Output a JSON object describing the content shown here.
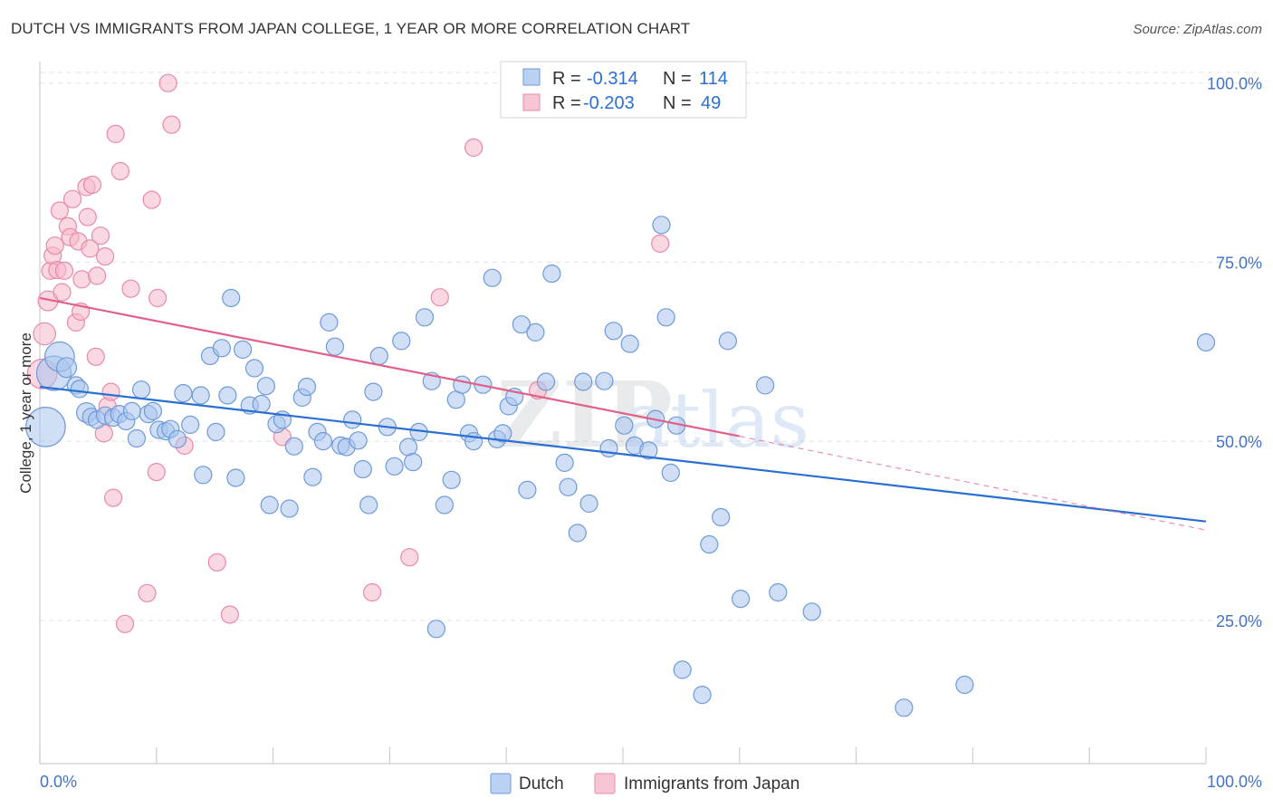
{
  "header": {
    "title": "DUTCH VS IMMIGRANTS FROM JAPAN COLLEGE, 1 YEAR OR MORE CORRELATION CHART",
    "source": "Source: ZipAtlas.com"
  },
  "watermark": {
    "part1": "ZIP",
    "part2": "atlas"
  },
  "colors": {
    "dutch_fill": "#a9c5ee",
    "dutch_stroke": "#6f9ad8",
    "dutch_line": "#2a6fd1",
    "japan_fill": "#f5b8cb",
    "japan_stroke": "#e88aa8",
    "japan_line": "#e0608a",
    "axis_text": "#4472c4",
    "grid": "#dde3ea"
  },
  "stats": [
    {
      "r_label": "R = ",
      "r_value": "-0.314",
      "n_label": "N = ",
      "n_value": "114"
    },
    {
      "r_label": "R = ",
      "r_value": "-0.203",
      "n_label": "N = ",
      "n_value": "49"
    }
  ],
  "legend": {
    "items": [
      "Dutch",
      "Immigrants from Japan"
    ]
  },
  "chart_data": {
    "type": "scatter",
    "title": "DUTCH VS IMMIGRANTS FROM JAPAN COLLEGE, 1 YEAR OR MORE CORRELATION CHART",
    "xlabel": "",
    "ylabel": "College, 1 year or more",
    "xlim": [
      0,
      100
    ],
    "ylim": [
      5,
      103
    ],
    "x_tick_labels": [
      "0.0%",
      "100.0%"
    ],
    "y_ticks": [
      25,
      50,
      75,
      100
    ],
    "y_tick_labels": [
      "25.0%",
      "50.0%",
      "75.0%",
      "100.0%"
    ],
    "grid": true,
    "legend_position": "bottom",
    "series": [
      {
        "name": "Dutch",
        "r": -0.314,
        "n": 114,
        "trend": {
          "x0": 0,
          "y0": 57.6,
          "x1": 100,
          "y1": 38.8
        },
        "points": [
          [
            0.5,
            52.0,
            1.6
          ],
          [
            1.2,
            59.5,
            1.4
          ],
          [
            1.7,
            61.8,
            1.2
          ],
          [
            2.3,
            60.3,
            0.8
          ],
          [
            3.1,
            57.8,
            0.7
          ],
          [
            3.4,
            57.3,
            0.7
          ],
          [
            4.0,
            54.0,
            0.8
          ],
          [
            4.4,
            53.4,
            0.7
          ],
          [
            4.9,
            53.0,
            0.7
          ],
          [
            5.6,
            53.6,
            0.7
          ],
          [
            6.3,
            53.3,
            0.7
          ],
          [
            6.8,
            53.8,
            0.7
          ],
          [
            7.4,
            52.8,
            0.7
          ],
          [
            7.9,
            54.2,
            0.7
          ],
          [
            8.3,
            50.4,
            0.7
          ],
          [
            8.7,
            57.2,
            0.7
          ],
          [
            9.3,
            53.8,
            0.7
          ],
          [
            9.7,
            54.2,
            0.7
          ],
          [
            10.2,
            51.6,
            0.7
          ],
          [
            10.8,
            51.4,
            0.7
          ],
          [
            11.2,
            51.7,
            0.7
          ],
          [
            11.8,
            50.3,
            0.7
          ],
          [
            12.3,
            56.7,
            0.7
          ],
          [
            12.9,
            52.3,
            0.7
          ],
          [
            13.8,
            56.4,
            0.7
          ],
          [
            14.0,
            45.3,
            0.7
          ],
          [
            14.6,
            61.9,
            0.7
          ],
          [
            15.1,
            51.3,
            0.7
          ],
          [
            15.6,
            63.0,
            0.7
          ],
          [
            16.1,
            56.4,
            0.7
          ],
          [
            16.4,
            70.0,
            0.7
          ],
          [
            16.8,
            44.9,
            0.7
          ],
          [
            17.4,
            62.8,
            0.7
          ],
          [
            18.0,
            55.0,
            0.7
          ],
          [
            18.4,
            60.2,
            0.7
          ],
          [
            19.0,
            55.2,
            0.7
          ],
          [
            19.4,
            57.7,
            0.7
          ],
          [
            19.7,
            41.1,
            0.7
          ],
          [
            20.3,
            52.4,
            0.7
          ],
          [
            20.8,
            53.0,
            0.7
          ],
          [
            21.4,
            40.6,
            0.7
          ],
          [
            21.8,
            49.3,
            0.7
          ],
          [
            22.5,
            56.1,
            0.7
          ],
          [
            22.9,
            57.6,
            0.7
          ],
          [
            23.4,
            45.0,
            0.7
          ],
          [
            23.8,
            51.3,
            0.7
          ],
          [
            24.3,
            50.0,
            0.7
          ],
          [
            24.8,
            66.6,
            0.7
          ],
          [
            25.3,
            63.2,
            0.7
          ],
          [
            25.8,
            49.4,
            0.7
          ],
          [
            26.3,
            49.2,
            0.7
          ],
          [
            26.8,
            53.0,
            0.7
          ],
          [
            27.3,
            50.1,
            0.7
          ],
          [
            27.7,
            46.1,
            0.7
          ],
          [
            28.2,
            41.1,
            0.7
          ],
          [
            28.6,
            56.9,
            0.7
          ],
          [
            29.1,
            61.9,
            0.7
          ],
          [
            29.8,
            52.0,
            0.7
          ],
          [
            30.4,
            46.5,
            0.7
          ],
          [
            31.0,
            64.0,
            0.7
          ],
          [
            31.6,
            49.2,
            0.7
          ],
          [
            32.0,
            47.1,
            0.7
          ],
          [
            32.5,
            51.3,
            0.7
          ],
          [
            33.0,
            67.3,
            0.7
          ],
          [
            33.6,
            58.4,
            0.7
          ],
          [
            34.0,
            23.8,
            0.7
          ],
          [
            34.7,
            41.1,
            0.7
          ],
          [
            35.3,
            44.6,
            0.7
          ],
          [
            35.7,
            55.8,
            0.7
          ],
          [
            36.2,
            57.9,
            0.7
          ],
          [
            36.8,
            51.1,
            0.7
          ],
          [
            37.2,
            50.0,
            0.7
          ],
          [
            38.0,
            57.9,
            0.7
          ],
          [
            38.8,
            72.8,
            0.7
          ],
          [
            39.2,
            50.3,
            0.7
          ],
          [
            39.7,
            51.1,
            0.7
          ],
          [
            40.2,
            54.9,
            0.7
          ],
          [
            40.7,
            56.2,
            0.7
          ],
          [
            41.3,
            66.3,
            0.7
          ],
          [
            41.8,
            43.2,
            0.7
          ],
          [
            42.5,
            65.2,
            0.7
          ],
          [
            43.4,
            58.3,
            0.7
          ],
          [
            43.9,
            73.4,
            0.7
          ],
          [
            45.0,
            47.0,
            0.7
          ],
          [
            45.3,
            43.6,
            0.7
          ],
          [
            46.1,
            37.2,
            0.7
          ],
          [
            46.6,
            58.3,
            0.7
          ],
          [
            47.1,
            41.3,
            0.7
          ],
          [
            48.4,
            58.4,
            0.7
          ],
          [
            48.8,
            49.0,
            0.7
          ],
          [
            49.2,
            65.4,
            0.7
          ],
          [
            50.1,
            52.2,
            0.7
          ],
          [
            50.6,
            63.6,
            0.7
          ],
          [
            51.0,
            49.4,
            0.7
          ],
          [
            52.2,
            48.7,
            0.7
          ],
          [
            52.8,
            53.1,
            0.7
          ],
          [
            53.3,
            80.2,
            0.7
          ],
          [
            53.7,
            67.3,
            0.7
          ],
          [
            54.1,
            45.6,
            0.7
          ],
          [
            54.6,
            52.2,
            0.7
          ],
          [
            55.1,
            18.1,
            0.7
          ],
          [
            56.8,
            14.6,
            0.7
          ],
          [
            57.4,
            35.6,
            0.7
          ],
          [
            58.4,
            39.4,
            0.7
          ],
          [
            59.0,
            64.0,
            0.7
          ],
          [
            60.1,
            28.0,
            0.7
          ],
          [
            62.2,
            57.8,
            0.7
          ],
          [
            63.3,
            28.9,
            0.7
          ],
          [
            66.2,
            26.2,
            0.7
          ],
          [
            74.1,
            12.8,
            0.7
          ],
          [
            79.3,
            16.0,
            0.7
          ],
          [
            100.0,
            63.8,
            0.7
          ]
        ]
      },
      {
        "name": "Immigrants from Japan",
        "r": -0.203,
        "n": 49,
        "trend": {
          "x0": 0,
          "y0": 70.0,
          "x1": 60,
          "y1": 50.7
        },
        "trend_ext": {
          "x0": 60,
          "y0": 50.7,
          "x1": 100,
          "y1": 37.6
        },
        "points": [
          [
            0.2,
            59.4,
            1.2
          ],
          [
            0.4,
            65.0,
            0.9
          ],
          [
            0.7,
            69.6,
            0.8
          ],
          [
            0.9,
            73.8,
            0.7
          ],
          [
            1.1,
            75.9,
            0.7
          ],
          [
            1.3,
            77.3,
            0.7
          ],
          [
            1.5,
            73.9,
            0.7
          ],
          [
            1.7,
            82.2,
            0.7
          ],
          [
            1.9,
            70.8,
            0.7
          ],
          [
            2.1,
            73.8,
            0.7
          ],
          [
            2.4,
            80.0,
            0.7
          ],
          [
            2.6,
            78.5,
            0.7
          ],
          [
            2.8,
            83.8,
            0.7
          ],
          [
            3.1,
            66.6,
            0.7
          ],
          [
            3.3,
            77.9,
            0.7
          ],
          [
            3.5,
            68.1,
            0.7
          ],
          [
            3.6,
            72.6,
            0.7
          ],
          [
            4.0,
            85.5,
            0.7
          ],
          [
            4.1,
            81.3,
            0.7
          ],
          [
            4.3,
            76.9,
            0.7
          ],
          [
            4.5,
            85.8,
            0.7
          ],
          [
            4.8,
            61.8,
            0.7
          ],
          [
            4.9,
            73.1,
            0.7
          ],
          [
            5.2,
            78.7,
            0.7
          ],
          [
            5.5,
            51.1,
            0.7
          ],
          [
            5.6,
            75.8,
            0.7
          ],
          [
            5.8,
            54.9,
            0.7
          ],
          [
            6.1,
            56.9,
            0.7
          ],
          [
            6.3,
            42.1,
            0.7
          ],
          [
            6.5,
            92.9,
            0.7
          ],
          [
            6.9,
            87.7,
            0.7
          ],
          [
            7.3,
            24.5,
            0.7
          ],
          [
            7.8,
            71.3,
            0.7
          ],
          [
            9.2,
            28.8,
            0.7
          ],
          [
            9.6,
            83.7,
            0.7
          ],
          [
            10.0,
            45.7,
            0.7
          ],
          [
            10.1,
            70.0,
            0.7
          ],
          [
            11.0,
            100.0,
            0.7
          ],
          [
            11.3,
            94.2,
            0.7
          ],
          [
            12.4,
            49.4,
            0.7
          ],
          [
            15.2,
            33.1,
            0.7
          ],
          [
            16.3,
            25.8,
            0.7
          ],
          [
            20.8,
            50.6,
            0.7
          ],
          [
            28.5,
            28.9,
            0.7
          ],
          [
            31.7,
            33.8,
            0.7
          ],
          [
            34.3,
            70.1,
            0.7
          ],
          [
            37.2,
            91.0,
            0.7
          ],
          [
            42.7,
            57.1,
            0.7
          ],
          [
            53.2,
            77.6,
            0.7
          ]
        ]
      }
    ]
  }
}
